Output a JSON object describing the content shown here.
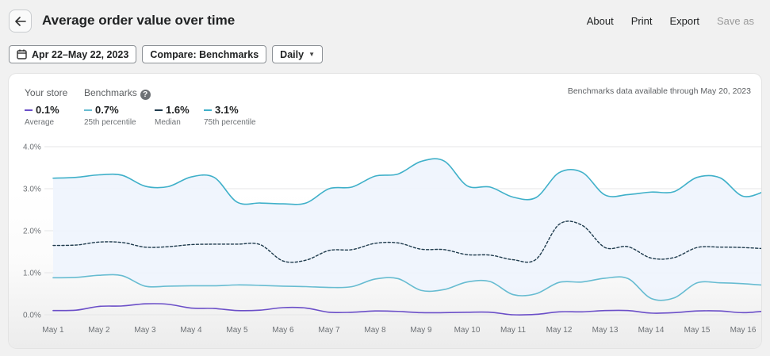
{
  "header": {
    "title": "Average order value over time",
    "actions": [
      "About",
      "Print",
      "Export",
      "Save as"
    ]
  },
  "filters": {
    "date_range": "Apr 22–May 22, 2023",
    "compare": "Compare: Benchmarks",
    "granularity": "Daily"
  },
  "legend": {
    "your_store_heading": "Your store",
    "benchmarks_heading": "Benchmarks",
    "help_glyph": "?",
    "note": "Benchmarks data available through May 20, 2023",
    "items": [
      {
        "value": "0.1%",
        "label": "Average"
      },
      {
        "value": "0.7%",
        "label": "25th percentile"
      },
      {
        "value": "1.6%",
        "label": "Median"
      },
      {
        "value": "3.1%",
        "label": "75th percentile"
      }
    ]
  },
  "colors": {
    "average": "#6b4fc8",
    "p25": "#67bcd1",
    "median": "#1f3b4d",
    "p75": "#3fb0c9",
    "band": "#eef4fd"
  },
  "chart_data": {
    "type": "line",
    "title": "Average order value over time",
    "x": [
      "May 1",
      "",
      "May 2",
      "",
      "May 3",
      "",
      "May 4",
      "",
      "May 5",
      "",
      "May 6",
      "",
      "May 7",
      "",
      "May 8",
      "",
      "May 9",
      "",
      "May 10",
      "",
      "May 11",
      "",
      "May 12",
      "",
      "May 13",
      "",
      "May 14",
      "",
      "May 15",
      "",
      "May 16",
      ""
    ],
    "xticks": [
      "May 1",
      "May 2",
      "May 3",
      "May 4",
      "May 5",
      "May 6",
      "May 7",
      "May 8",
      "May 9",
      "May 10",
      "May 11",
      "May 12",
      "May 13",
      "May 14",
      "May 15",
      "May 16"
    ],
    "yticks": [
      "0.0%",
      "1.0%",
      "2.0%",
      "3.0%",
      "4.0%"
    ],
    "ylim": [
      0,
      4
    ],
    "series": [
      {
        "name": "75th percentile",
        "values": [
          3.25,
          3.27,
          3.33,
          3.32,
          3.06,
          3.05,
          3.28,
          3.27,
          2.68,
          2.66,
          2.64,
          2.66,
          3.0,
          3.04,
          3.3,
          3.35,
          3.65,
          3.66,
          3.07,
          3.04,
          2.8,
          2.79,
          3.38,
          3.39,
          2.85,
          2.86,
          2.92,
          2.93,
          3.27,
          3.26,
          2.82,
          2.95
        ]
      },
      {
        "name": "Median",
        "values": [
          1.65,
          1.66,
          1.73,
          1.72,
          1.61,
          1.62,
          1.67,
          1.68,
          1.68,
          1.67,
          1.28,
          1.3,
          1.53,
          1.55,
          1.7,
          1.71,
          1.56,
          1.55,
          1.43,
          1.42,
          1.31,
          1.32,
          2.15,
          2.13,
          1.6,
          1.62,
          1.35,
          1.36,
          1.6,
          1.61,
          1.6,
          1.57
        ]
      },
      {
        "name": "25th percentile",
        "values": [
          0.88,
          0.89,
          0.94,
          0.93,
          0.68,
          0.68,
          0.69,
          0.69,
          0.71,
          0.7,
          0.68,
          0.67,
          0.65,
          0.67,
          0.85,
          0.86,
          0.58,
          0.6,
          0.78,
          0.79,
          0.48,
          0.5,
          0.77,
          0.78,
          0.87,
          0.86,
          0.39,
          0.4,
          0.76,
          0.76,
          0.74,
          0.7
        ]
      },
      {
        "name": "Average",
        "values": [
          0.1,
          0.11,
          0.2,
          0.21,
          0.26,
          0.25,
          0.16,
          0.15,
          0.1,
          0.11,
          0.17,
          0.16,
          0.06,
          0.06,
          0.09,
          0.08,
          0.05,
          0.05,
          0.06,
          0.06,
          0.0,
          0.01,
          0.07,
          0.07,
          0.1,
          0.1,
          0.04,
          0.05,
          0.09,
          0.09,
          0.05,
          0.09
        ]
      }
    ]
  }
}
